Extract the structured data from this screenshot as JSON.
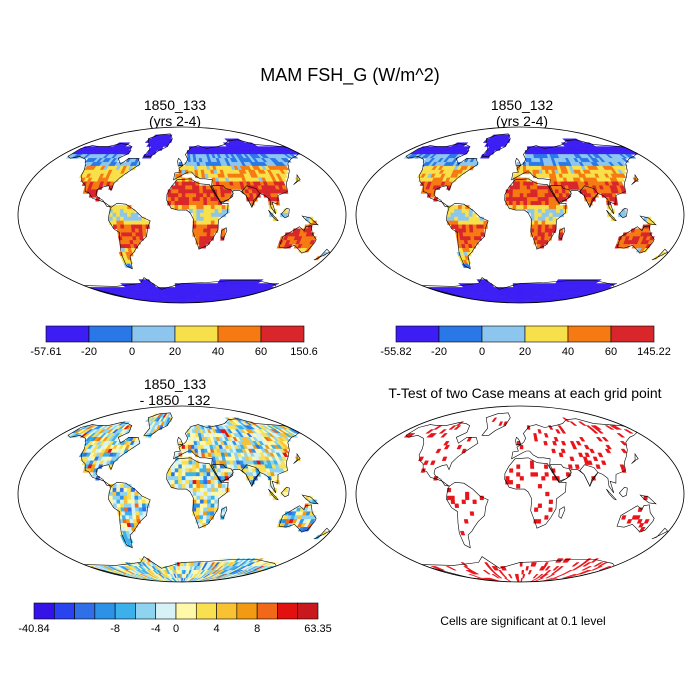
{
  "title": "MAM FSH_G (W/m^2)",
  "colors": {
    "ocean": "#ffffff",
    "coast": "#000000",
    "ttest_mark": "#e8141a",
    "seq": [
      "#3c1ef5",
      "#2a78e8",
      "#8cc6ee",
      "#f8e04a",
      "#f67a12",
      "#d8262a"
    ],
    "diff": [
      "#3512e8",
      "#2a43f0",
      "#2f6fe8",
      "#2b92e8",
      "#3bb0ea",
      "#8ed4f0",
      "#d6f2f6",
      "#fff8a8",
      "#f8e050",
      "#f8c232",
      "#f29a12",
      "#f06818",
      "#e31010",
      "#c8181e"
    ]
  },
  "panels": [
    {
      "id": "p1",
      "title_line1": "1850_133",
      "title_line2": "(yrs 2-4)",
      "type": "field",
      "colorbar": {
        "labels": [
          "-57.61",
          "-20",
          "0",
          "20",
          "40",
          "60",
          "150.6"
        ],
        "palette": "seq"
      }
    },
    {
      "id": "p2",
      "title_line1": "1850_132",
      "title_line2": "(yrs 2-4)",
      "type": "field",
      "colorbar": {
        "labels": [
          "-55.82",
          "-20",
          "0",
          "20",
          "40",
          "60",
          "145.22"
        ],
        "palette": "seq"
      }
    },
    {
      "id": "p3",
      "title_line1": "1850_133",
      "title_line2": "- 1850_132",
      "type": "diff",
      "colorbar": {
        "labels": [
          "-40.84",
          "-8",
          "-4",
          "0",
          "4",
          "8",
          "63.35"
        ],
        "palette": "diff"
      }
    },
    {
      "id": "p4",
      "title_line1": "T-Test of two Case means at each grid point",
      "title_line2": "",
      "type": "ttest",
      "note": "Cells are significant at 0.1 level"
    }
  ],
  "chart_data": [
    {
      "type": "heatmap",
      "title": "1850_133 (yrs 2-4)",
      "variable": "FSH_G",
      "units": "W/m^2",
      "season": "MAM",
      "color_levels": [
        -20,
        0,
        20,
        40,
        60
      ],
      "value_range": [
        -57.61,
        150.6
      ]
    },
    {
      "type": "heatmap",
      "title": "1850_132 (yrs 2-4)",
      "variable": "FSH_G",
      "units": "W/m^2",
      "season": "MAM",
      "color_levels": [
        -20,
        0,
        20,
        40,
        60
      ],
      "value_range": [
        -55.82,
        145.22
      ]
    },
    {
      "type": "heatmap",
      "title": "1850_133 - 1850_132",
      "variable": "FSH_G difference",
      "units": "W/m^2",
      "color_levels": [
        -8,
        -4,
        0,
        4,
        8
      ],
      "value_range": [
        -40.84,
        63.35
      ]
    },
    {
      "type": "heatmap",
      "title": "T-Test of two Case means at each grid point",
      "significance_level": 0.1
    }
  ]
}
